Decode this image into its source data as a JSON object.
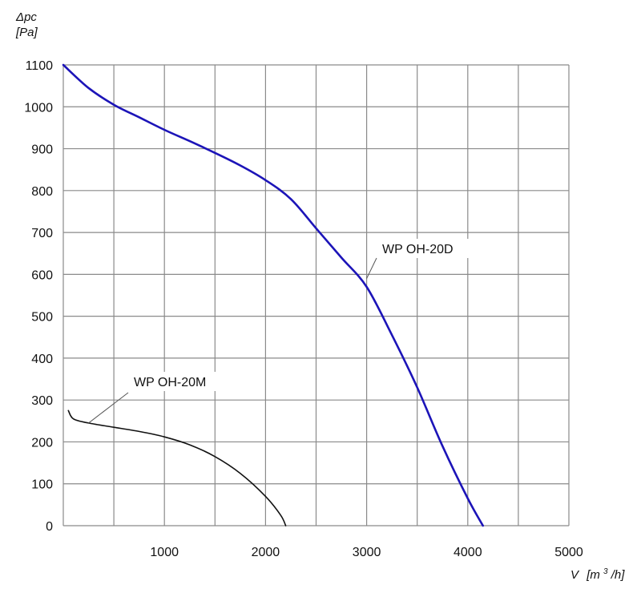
{
  "chart_data": {
    "type": "line",
    "ylabel_symbol": "Δpc",
    "ylabel_unit": "[Pa]",
    "xlabel_symbol": "V",
    "xlabel_unit_pre": "[m",
    "xlabel_unit_sup": "3",
    "xlabel_unit_post": "/h]",
    "xlim": [
      0,
      5000
    ],
    "ylim": [
      0,
      1100
    ],
    "x_ticks": [
      1000,
      2000,
      3000,
      4000,
      5000
    ],
    "x_tick_labels": [
      "1000",
      "2000",
      "3000",
      "4000",
      "5000"
    ],
    "y_ticks": [
      0,
      100,
      200,
      300,
      400,
      500,
      600,
      700,
      800,
      900,
      1000,
      1100
    ],
    "y_tick_labels": [
      "0",
      "100",
      "200",
      "300",
      "400",
      "500",
      "600",
      "700",
      "800",
      "900",
      "1000",
      "1100"
    ],
    "x_grid_step": 500,
    "grid": true,
    "series": [
      {
        "name": "WP OH-20D",
        "color": "#1c14b8",
        "x": [
          0,
          250,
          500,
          750,
          1000,
          1250,
          1500,
          1750,
          2000,
          2250,
          2500,
          2750,
          3000,
          3250,
          3500,
          3750,
          4000,
          4150
        ],
        "y": [
          1100,
          1045,
          1005,
          975,
          945,
          918,
          890,
          860,
          825,
          780,
          710,
          640,
          570,
          455,
          330,
          190,
          65,
          0
        ]
      },
      {
        "name": "WP OH-20M",
        "color": "#111111",
        "x": [
          50,
          100,
          250,
          500,
          750,
          1000,
          1250,
          1500,
          1750,
          2000,
          2150,
          2200
        ],
        "y": [
          275,
          255,
          245,
          235,
          225,
          212,
          193,
          165,
          125,
          70,
          25,
          0
        ]
      }
    ],
    "annotations": [
      {
        "text": "WP OH-20D",
        "series": "WP OH-20D",
        "x": 3000,
        "y": 590
      },
      {
        "text": "WP OH-20M",
        "series": "WP OH-20M",
        "x": 250,
        "y": 245
      }
    ]
  }
}
